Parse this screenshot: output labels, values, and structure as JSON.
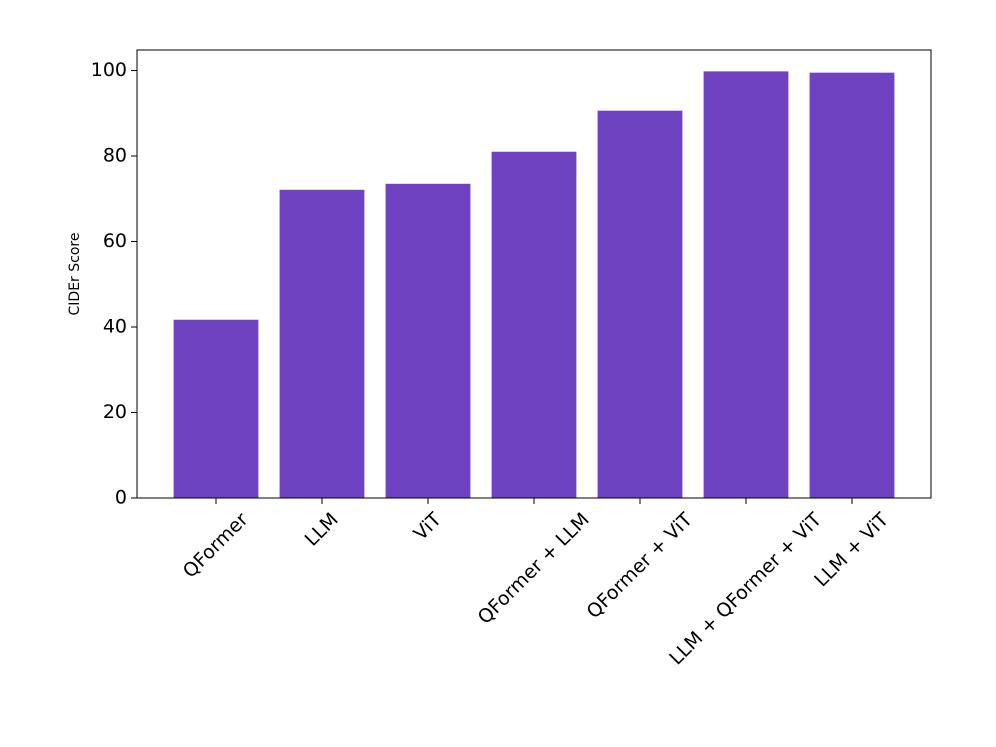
{
  "chart_data": {
    "type": "bar",
    "ylabel": "CIDEr Score",
    "categories": [
      "QFormer",
      "LLM",
      "ViT",
      "QFormer + LLM",
      "QFormer + ViT",
      "LLM + QFormer + ViT",
      "LLM + ViT"
    ],
    "values": [
      41.7,
      72.1,
      73.5,
      81.0,
      90.6,
      99.8,
      99.5
    ],
    "color": "#6f42c1",
    "ylim": [
      0,
      104.8
    ],
    "yticks": [
      0,
      20,
      40,
      60,
      80,
      100
    ]
  }
}
